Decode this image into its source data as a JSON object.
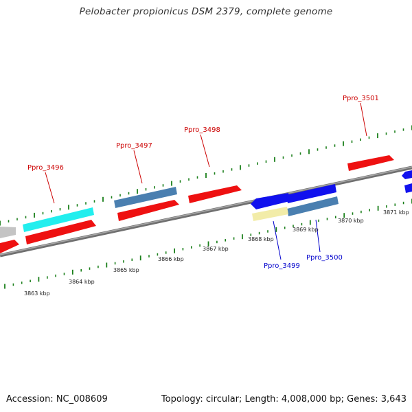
{
  "title": "Pelobacter propionicus DSM 2379, complete genome",
  "footer": {
    "accession": "Accession: NC_008609",
    "summary": "Topology: circular; Length: 4,008,000 bp; Genes: 3,643"
  },
  "colors": {
    "background": "#ffffff",
    "backbone": "#808080",
    "tick": "#1a7f1a",
    "cds_red": "#ee1111",
    "cds_blue": "#1111ee",
    "cds_cyan": "#22eeee",
    "cds_steel": "#4a7fb0",
    "cds_yellow": "#f2eca8",
    "cds_gray": "#c4c4c4",
    "label_red": "#cc0000",
    "label_blue": "#0000cc"
  },
  "scale_labels": [
    "3863 kbp",
    "3864 kbp",
    "3865 kbp",
    "3866 kbp",
    "3867 kbp",
    "3868 kbp",
    "3869 kbp",
    "3870 kbp",
    "3871 kbp"
  ],
  "gene_labels": [
    {
      "name": "Ppro_3496",
      "strand": "forward"
    },
    {
      "name": "Ppro_3497",
      "strand": "forward"
    },
    {
      "name": "Ppro_3498",
      "strand": "forward"
    },
    {
      "name": "Ppro_3501",
      "strand": "forward"
    },
    {
      "name": "Ppro_3499",
      "strand": "reverse"
    },
    {
      "name": "Ppro_3500",
      "strand": "reverse"
    }
  ]
}
